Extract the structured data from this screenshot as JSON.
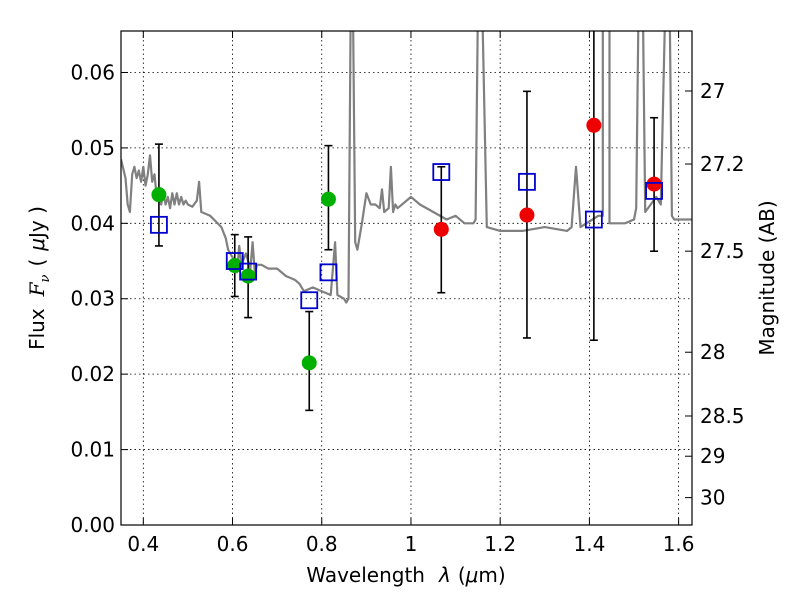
{
  "chart_data": {
    "type": "scatter",
    "title": "",
    "xlabel_text": "Wavelength",
    "xlabel_symbol": "λ",
    "xlabel_unit_open": "(",
    "xlabel_unit_mu": "μ",
    "xlabel_unit_rest": "m)",
    "ylabel_text": "Flux",
    "ylabel_symbol": "F",
    "ylabel_symbol_sub": "ν",
    "ylabel_unit_open": "(",
    "ylabel_unit_mu": "μ",
    "ylabel_unit_rest": "Jy )",
    "y2label": "Magnitude (AB)",
    "xlim": [
      0.35,
      1.63
    ],
    "ylim": [
      0.0,
      0.0655
    ],
    "x_ticks": [
      0.4,
      0.6,
      0.8,
      1.0,
      1.2,
      1.4,
      1.6
    ],
    "x_tick_labels": [
      "0.4",
      "0.6",
      "0.8",
      "1",
      "1.2",
      "1.4",
      "1.6"
    ],
    "y_ticks": [
      0.0,
      0.01,
      0.02,
      0.03,
      0.04,
      0.05,
      0.06
    ],
    "y_tick_labels": [
      "0.00",
      "0.01",
      "0.02",
      "0.03",
      "0.04",
      "0.05",
      "0.06"
    ],
    "y2_ticks": [
      27,
      27.2,
      27.5,
      28,
      28.5,
      29,
      30
    ],
    "y2_tick_labels": [
      "27",
      "27.2",
      "27.5",
      "28",
      "28.5",
      "29",
      "30"
    ],
    "grid": true,
    "colors": {
      "model": "#808080",
      "green": "#00b000",
      "red": "#ee0000",
      "model_points": "#0000cc",
      "errorbar": "#000000"
    },
    "model_spectrum": [
      [
        0.35,
        0.0485
      ],
      [
        0.36,
        0.046
      ],
      [
        0.365,
        0.0425
      ],
      [
        0.37,
        0.0415
      ],
      [
        0.375,
        0.0465
      ],
      [
        0.38,
        0.0475
      ],
      [
        0.385,
        0.046
      ],
      [
        0.39,
        0.047
      ],
      [
        0.395,
        0.0455
      ],
      [
        0.4,
        0.0475
      ],
      [
        0.405,
        0.045
      ],
      [
        0.41,
        0.0465
      ],
      [
        0.415,
        0.049
      ],
      [
        0.42,
        0.0455
      ],
      [
        0.425,
        0.0465
      ],
      [
        0.43,
        0.0435
      ],
      [
        0.435,
        0.0445
      ],
      [
        0.44,
        0.0425
      ],
      [
        0.445,
        0.044
      ],
      [
        0.45,
        0.0425
      ],
      [
        0.455,
        0.0435
      ],
      [
        0.46,
        0.042
      ],
      [
        0.465,
        0.044
      ],
      [
        0.47,
        0.0425
      ],
      [
        0.475,
        0.044
      ],
      [
        0.48,
        0.0425
      ],
      [
        0.485,
        0.0435
      ],
      [
        0.49,
        0.0425
      ],
      [
        0.495,
        0.043
      ],
      [
        0.5,
        0.0425
      ],
      [
        0.51,
        0.0422
      ],
      [
        0.52,
        0.043
      ],
      [
        0.525,
        0.0455
      ],
      [
        0.53,
        0.0415
      ],
      [
        0.55,
        0.041
      ],
      [
        0.575,
        0.0395
      ],
      [
        0.585,
        0.038
      ],
      [
        0.59,
        0.0365
      ],
      [
        0.6,
        0.0355
      ],
      [
        0.61,
        0.0335
      ],
      [
        0.615,
        0.037
      ],
      [
        0.62,
        0.0345
      ],
      [
        0.63,
        0.036
      ],
      [
        0.64,
        0.034
      ],
      [
        0.645,
        0.0375
      ],
      [
        0.65,
        0.0335
      ],
      [
        0.655,
        0.0345
      ],
      [
        0.665,
        0.0345
      ],
      [
        0.68,
        0.034
      ],
      [
        0.7,
        0.034
      ],
      [
        0.72,
        0.033
      ],
      [
        0.74,
        0.0325
      ],
      [
        0.75,
        0.032
      ],
      [
        0.76,
        0.031
      ],
      [
        0.78,
        0.0315
      ],
      [
        0.8,
        0.031
      ],
      [
        0.82,
        0.0305
      ],
      [
        0.83,
        0.0375
      ],
      [
        0.835,
        0.0305
      ],
      [
        0.85,
        0.03
      ],
      [
        0.855,
        0.0295
      ],
      [
        0.86,
        0.03
      ],
      [
        0.865,
        0.0685
      ],
      [
        0.87,
        0.0685
      ],
      [
        0.875,
        0.0375
      ],
      [
        0.88,
        0.0365
      ],
      [
        0.89,
        0.04
      ],
      [
        0.9,
        0.044
      ],
      [
        0.91,
        0.0425
      ],
      [
        0.92,
        0.0425
      ],
      [
        0.93,
        0.042
      ],
      [
        0.935,
        0.0445
      ],
      [
        0.94,
        0.0415
      ],
      [
        0.95,
        0.042
      ],
      [
        0.955,
        0.0475
      ],
      [
        0.96,
        0.0415
      ],
      [
        0.965,
        0.0425
      ],
      [
        0.97,
        0.042
      ],
      [
        1.0,
        0.0435
      ],
      [
        1.02,
        0.0425
      ],
      [
        1.05,
        0.0415
      ],
      [
        1.08,
        0.0405
      ],
      [
        1.1,
        0.041
      ],
      [
        1.12,
        0.04
      ],
      [
        1.14,
        0.04
      ],
      [
        1.145,
        0.0405
      ],
      [
        1.15,
        0.0685
      ],
      [
        1.16,
        0.0685
      ],
      [
        1.17,
        0.0395
      ],
      [
        1.2,
        0.039
      ],
      [
        1.25,
        0.039
      ],
      [
        1.3,
        0.0395
      ],
      [
        1.35,
        0.039
      ],
      [
        1.36,
        0.0395
      ],
      [
        1.37,
        0.0475
      ],
      [
        1.38,
        0.0395
      ],
      [
        1.42,
        0.041
      ],
      [
        1.43,
        0.041
      ],
      [
        1.43,
        0.0685
      ],
      [
        1.445,
        0.0685
      ],
      [
        1.445,
        0.04
      ],
      [
        1.48,
        0.04
      ],
      [
        1.5,
        0.0405
      ],
      [
        1.505,
        0.042
      ],
      [
        1.51,
        0.0685
      ],
      [
        1.52,
        0.0685
      ],
      [
        1.525,
        0.0415
      ],
      [
        1.55,
        0.0435
      ],
      [
        1.56,
        0.0425
      ],
      [
        1.57,
        0.0685
      ],
      [
        1.58,
        0.0685
      ],
      [
        1.585,
        0.041
      ],
      [
        1.59,
        0.0405
      ],
      [
        1.63,
        0.0405
      ]
    ],
    "errorbars": [
      {
        "x": 0.435,
        "low": 0.037,
        "high": 0.0505
      },
      {
        "x": 0.605,
        "low": 0.0303,
        "high": 0.0385
      },
      {
        "x": 0.635,
        "low": 0.0275,
        "high": 0.0382
      },
      {
        "x": 0.772,
        "low": 0.0152,
        "high": 0.0283
      },
      {
        "x": 0.815,
        "low": 0.0365,
        "high": 0.0503
      },
      {
        "x": 1.068,
        "low": 0.0308,
        "high": 0.0475
      },
      {
        "x": 1.26,
        "low": 0.0248,
        "high": 0.0575
      },
      {
        "x": 1.41,
        "low": 0.0245,
        "high": 0.07
      },
      {
        "x": 1.545,
        "low": 0.0363,
        "high": 0.054
      }
    ],
    "series": [
      {
        "values": [
          [
            0.435,
            0.0438
          ],
          [
            0.605,
            0.0344
          ],
          [
            0.635,
            0.033
          ],
          [
            0.772,
            0.0215
          ],
          [
            0.815,
            0.0432
          ]
        ]
      },
      {
        "values": [
          [
            1.068,
            0.0392
          ],
          [
            1.26,
            0.0411
          ],
          [
            1.41,
            0.053
          ],
          [
            1.545,
            0.0452
          ]
        ]
      },
      {
        "values": [
          [
            0.435,
            0.0398
          ],
          [
            0.605,
            0.035
          ],
          [
            0.635,
            0.0336
          ],
          [
            0.772,
            0.0298
          ],
          [
            0.815,
            0.0335
          ],
          [
            1.068,
            0.0468
          ],
          [
            1.26,
            0.0455
          ],
          [
            1.41,
            0.0405
          ],
          [
            1.545,
            0.0443
          ]
        ]
      }
    ]
  }
}
